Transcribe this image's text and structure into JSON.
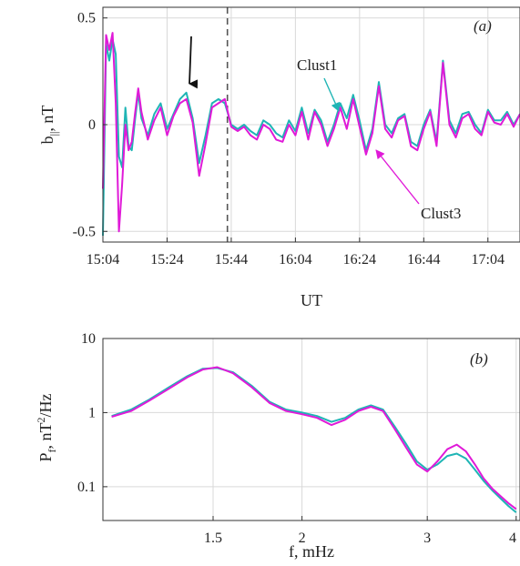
{
  "chart_data": [
    {
      "panel_label": "(a)",
      "type": "line",
      "xlabel": "UT",
      "ylabel": "b∥, nT",
      "x_ticks": [
        "15:04",
        "15:24",
        "15:44",
        "16:04",
        "16:24",
        "16:44",
        "17:04"
      ],
      "x_tick_minutes": [
        904,
        924,
        944,
        964,
        984,
        1004,
        1024
      ],
      "xlim_minutes": [
        904,
        1034
      ],
      "y_ticks": [
        "-0.5",
        "0",
        "0.5"
      ],
      "y_tick_values": [
        -0.5,
        0,
        0.5
      ],
      "ylim": [
        -0.55,
        0.55
      ],
      "grid": true,
      "dashed_vline_at": "15:44",
      "annotations": [
        "Clust1",
        "Clust3"
      ],
      "arrow_at": "15:28",
      "series": [
        {
          "name": "Clust1",
          "color": "#1fb5b5",
          "x_minutes": [
            904,
            905,
            906,
            907,
            908,
            909,
            910,
            911,
            912,
            913,
            914,
            915,
            916,
            918,
            920,
            922,
            924,
            926,
            928,
            930,
            932,
            934,
            936,
            938,
            940,
            942,
            944,
            946,
            948,
            950,
            952,
            954,
            956,
            958,
            960,
            962,
            964,
            966,
            968,
            970,
            972,
            974,
            976,
            978,
            980,
            982,
            984,
            986,
            988,
            990,
            992,
            994,
            996,
            998,
            1000,
            1002,
            1004,
            1006,
            1008,
            1010,
            1012,
            1014,
            1016,
            1018,
            1020,
            1022,
            1024,
            1026,
            1028,
            1030,
            1032,
            1034
          ],
          "values": [
            -0.52,
            0.38,
            0.3,
            0.4,
            0.33,
            -0.15,
            -0.2,
            0.08,
            -0.1,
            -0.12,
            0.02,
            0.15,
            0.03,
            -0.05,
            0.05,
            0.1,
            -0.02,
            0.05,
            0.12,
            0.15,
            0.03,
            -0.18,
            -0.05,
            0.1,
            0.12,
            0.1,
            0.0,
            -0.02,
            0.0,
            -0.03,
            -0.05,
            0.02,
            0.0,
            -0.04,
            -0.06,
            0.02,
            -0.03,
            0.08,
            -0.04,
            0.07,
            0.02,
            -0.08,
            0.0,
            0.1,
            0.03,
            0.14,
            0.02,
            -0.12,
            -0.02,
            0.2,
            0.0,
            -0.04,
            0.03,
            0.05,
            -0.08,
            -0.1,
            0.0,
            0.07,
            -0.08,
            0.3,
            0.02,
            -0.04,
            0.05,
            0.06,
            0.0,
            -0.04,
            0.07,
            0.02,
            0.02,
            0.06,
            0.0,
            0.05
          ]
        },
        {
          "name": "Clust3",
          "color": "#e01ad8",
          "x_minutes": [
            904,
            905,
            906,
            907,
            908,
            909,
            910,
            911,
            912,
            913,
            914,
            915,
            916,
            918,
            920,
            922,
            924,
            926,
            928,
            930,
            932,
            934,
            936,
            938,
            940,
            942,
            944,
            946,
            948,
            950,
            952,
            954,
            956,
            958,
            960,
            962,
            964,
            966,
            968,
            970,
            972,
            974,
            976,
            978,
            980,
            982,
            984,
            986,
            988,
            990,
            992,
            994,
            996,
            998,
            1000,
            1002,
            1004,
            1006,
            1008,
            1010,
            1012,
            1014,
            1016,
            1018,
            1020,
            1022,
            1024,
            1026,
            1028,
            1030,
            1032,
            1034
          ],
          "values": [
            -0.3,
            0.42,
            0.35,
            0.43,
            0.1,
            -0.5,
            -0.28,
            0.0,
            -0.12,
            -0.08,
            0.05,
            0.17,
            0.06,
            -0.07,
            0.02,
            0.08,
            -0.05,
            0.04,
            0.1,
            0.12,
            0.01,
            -0.24,
            -0.09,
            0.08,
            0.1,
            0.12,
            -0.01,
            -0.03,
            -0.01,
            -0.05,
            -0.07,
            0.0,
            -0.02,
            -0.07,
            -0.08,
            0.0,
            -0.05,
            0.06,
            -0.07,
            0.06,
            0.0,
            -0.1,
            -0.02,
            0.08,
            -0.02,
            0.12,
            -0.01,
            -0.14,
            -0.04,
            0.18,
            -0.02,
            -0.06,
            0.02,
            0.04,
            -0.1,
            -0.12,
            -0.02,
            0.06,
            -0.1,
            0.29,
            0.0,
            -0.06,
            0.03,
            0.05,
            -0.02,
            -0.05,
            0.06,
            0.01,
            0.0,
            0.05,
            -0.01,
            0.05
          ]
        }
      ]
    },
    {
      "panel_label": "(b)",
      "type": "line",
      "xlabel": "f, mHz",
      "ylabel": "Pf, nT2/Hz",
      "x_scale": "log",
      "y_scale": "log",
      "x_ticks": [
        "1.5",
        "2",
        "3",
        "4"
      ],
      "x_tick_values": [
        1.5,
        2,
        3,
        4
      ],
      "xlim": [
        1.05,
        4.05
      ],
      "y_ticks": [
        "0.1",
        "1",
        "10"
      ],
      "y_tick_values": [
        0.1,
        1,
        10
      ],
      "ylim": [
        0.035,
        10
      ],
      "grid": true,
      "series": [
        {
          "name": "Clust1",
          "color": "#1fb5b5",
          "x": [
            1.08,
            1.15,
            1.22,
            1.3,
            1.38,
            1.45,
            1.52,
            1.6,
            1.7,
            1.8,
            1.9,
            2.0,
            2.1,
            2.2,
            2.3,
            2.4,
            2.5,
            2.6,
            2.7,
            2.8,
            2.9,
            3.0,
            3.1,
            3.2,
            3.3,
            3.4,
            3.5,
            3.6,
            3.7,
            3.8,
            3.9,
            4.0
          ],
          "y": [
            0.9,
            1.1,
            1.5,
            2.2,
            3.1,
            3.9,
            4.0,
            3.5,
            2.3,
            1.4,
            1.1,
            1.0,
            0.9,
            0.75,
            0.85,
            1.1,
            1.25,
            1.1,
            0.65,
            0.38,
            0.22,
            0.17,
            0.2,
            0.26,
            0.28,
            0.24,
            0.17,
            0.12,
            0.09,
            0.07,
            0.055,
            0.045
          ]
        },
        {
          "name": "Clust3",
          "color": "#e01ad8",
          "x": [
            1.08,
            1.15,
            1.22,
            1.3,
            1.38,
            1.45,
            1.52,
            1.6,
            1.7,
            1.8,
            1.9,
            2.0,
            2.1,
            2.2,
            2.3,
            2.4,
            2.5,
            2.6,
            2.7,
            2.8,
            2.9,
            3.0,
            3.1,
            3.2,
            3.3,
            3.4,
            3.5,
            3.6,
            3.7,
            3.8,
            3.9,
            4.0
          ],
          "y": [
            0.88,
            1.05,
            1.45,
            2.1,
            3.0,
            3.8,
            4.1,
            3.4,
            2.2,
            1.35,
            1.05,
            0.95,
            0.85,
            0.68,
            0.8,
            1.05,
            1.2,
            1.05,
            0.6,
            0.34,
            0.2,
            0.16,
            0.22,
            0.32,
            0.37,
            0.3,
            0.2,
            0.13,
            0.095,
            0.075,
            0.06,
            0.05
          ]
        }
      ]
    }
  ]
}
